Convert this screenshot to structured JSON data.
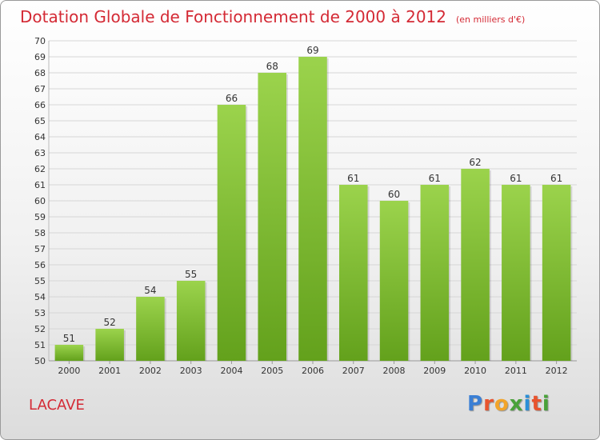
{
  "header": {
    "title": "Dotation Globale de Fonctionnement de 2000 à 2012",
    "subtitle": "(en milliers d'€)"
  },
  "footer": {
    "commune": "LACAVE",
    "brand": "Proxiti"
  },
  "colors": {
    "title": "#d42a35",
    "bar_light": "#9bd34c",
    "bar_dark": "#63a11c",
    "logo_letters": [
      "#3a7fd5",
      "#e8542e",
      "#f2a42a",
      "#4aa23a",
      "#2a8fd8",
      "#e8542e",
      "#4aa23a"
    ]
  },
  "chart_data": {
    "type": "bar",
    "categories": [
      "2000",
      "2001",
      "2002",
      "2003",
      "2004",
      "2005",
      "2006",
      "2007",
      "2008",
      "2009",
      "2010",
      "2011",
      "2012"
    ],
    "values": [
      51,
      52,
      54,
      55,
      66,
      68,
      69,
      61,
      60,
      61,
      62,
      61,
      61
    ],
    "title": "Dotation Globale de Fonctionnement de 2000 à 2012",
    "subtitle": "(en milliers d'€)",
    "xlabel": "",
    "ylabel": "",
    "ylim": [
      50,
      70
    ],
    "yticks": [
      50,
      51,
      52,
      53,
      54,
      55,
      56,
      57,
      58,
      59,
      60,
      61,
      62,
      63,
      64,
      65,
      66,
      67,
      68,
      69,
      70
    ],
    "grid": true,
    "legend": "none"
  }
}
